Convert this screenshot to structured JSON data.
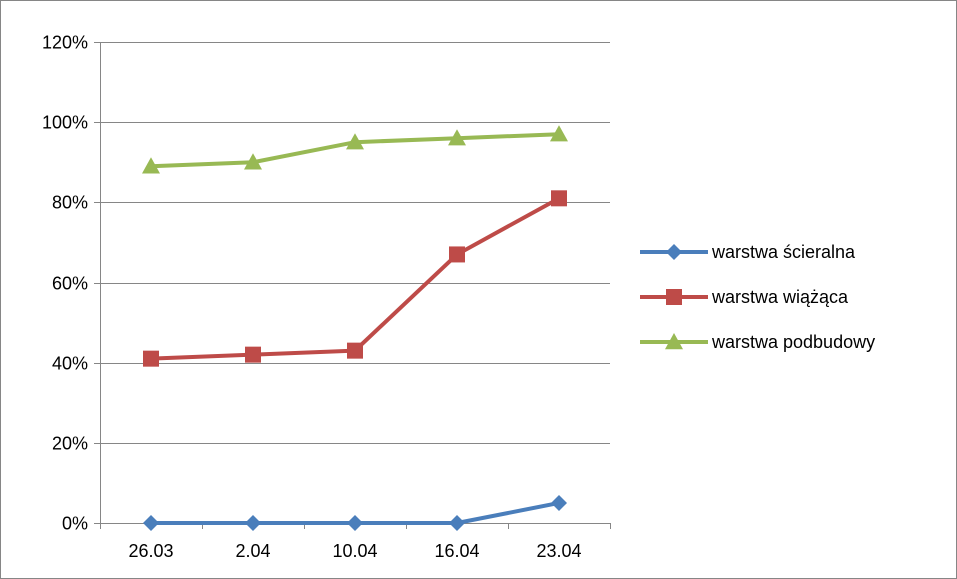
{
  "chart_data": {
    "type": "line",
    "categories": [
      "26.03",
      "2.04",
      "10.04",
      "16.04",
      "23.04"
    ],
    "series": [
      {
        "name": "warstwa ścieralna",
        "values": [
          0,
          0,
          0,
          0,
          5
        ],
        "color": "#4A7EBB",
        "marker": "diamond"
      },
      {
        "name": "warstwa wiążąca",
        "values": [
          41,
          42,
          43,
          67,
          81
        ],
        "color": "#BE4B48",
        "marker": "square"
      },
      {
        "name": "warstwa podbudowy",
        "values": [
          89,
          90,
          95,
          96,
          97
        ],
        "color": "#98B954",
        "marker": "triangle"
      }
    ],
    "ylim": [
      0,
      120
    ],
    "yticks": [
      0,
      20,
      40,
      60,
      80,
      100,
      120
    ],
    "ytick_labels": [
      "0%",
      "20%",
      "40%",
      "60%",
      "80%",
      "100%",
      "120%"
    ],
    "grid": true,
    "legend": "right"
  }
}
